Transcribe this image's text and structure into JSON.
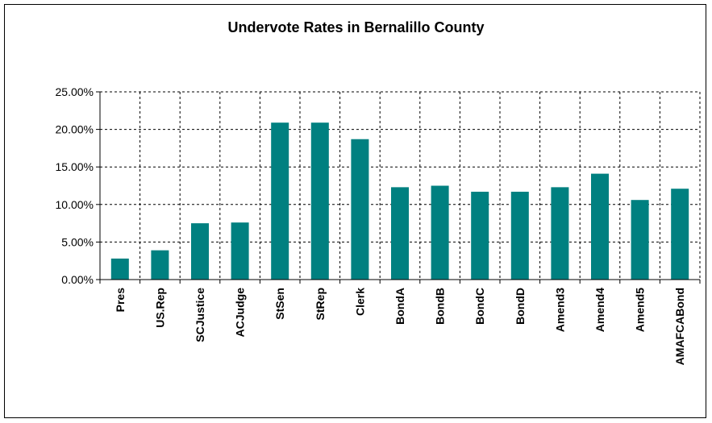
{
  "chart_data": {
    "type": "bar",
    "title": "Undervote Rates in Bernalillo County",
    "xlabel": "",
    "ylabel": "",
    "categories": [
      "Pres",
      "US.Rep",
      "SCJustice",
      "ACJudge",
      "StSen",
      "StRep",
      "Clerk",
      "BondA",
      "BondB",
      "BondC",
      "BondD",
      "Amend3",
      "Amend4",
      "Amend5",
      "AMAFCABond"
    ],
    "values": [
      2.8,
      3.9,
      7.5,
      7.6,
      20.9,
      20.9,
      18.7,
      12.3,
      12.5,
      11.7,
      11.7,
      12.3,
      14.1,
      10.6,
      12.1
    ],
    "ylim": [
      0,
      25
    ],
    "yticks": [
      "0.00%",
      "5.00%",
      "10.00%",
      "15.00%",
      "20.00%",
      "25.00%"
    ],
    "grid": true,
    "bar_color": "#008080"
  }
}
